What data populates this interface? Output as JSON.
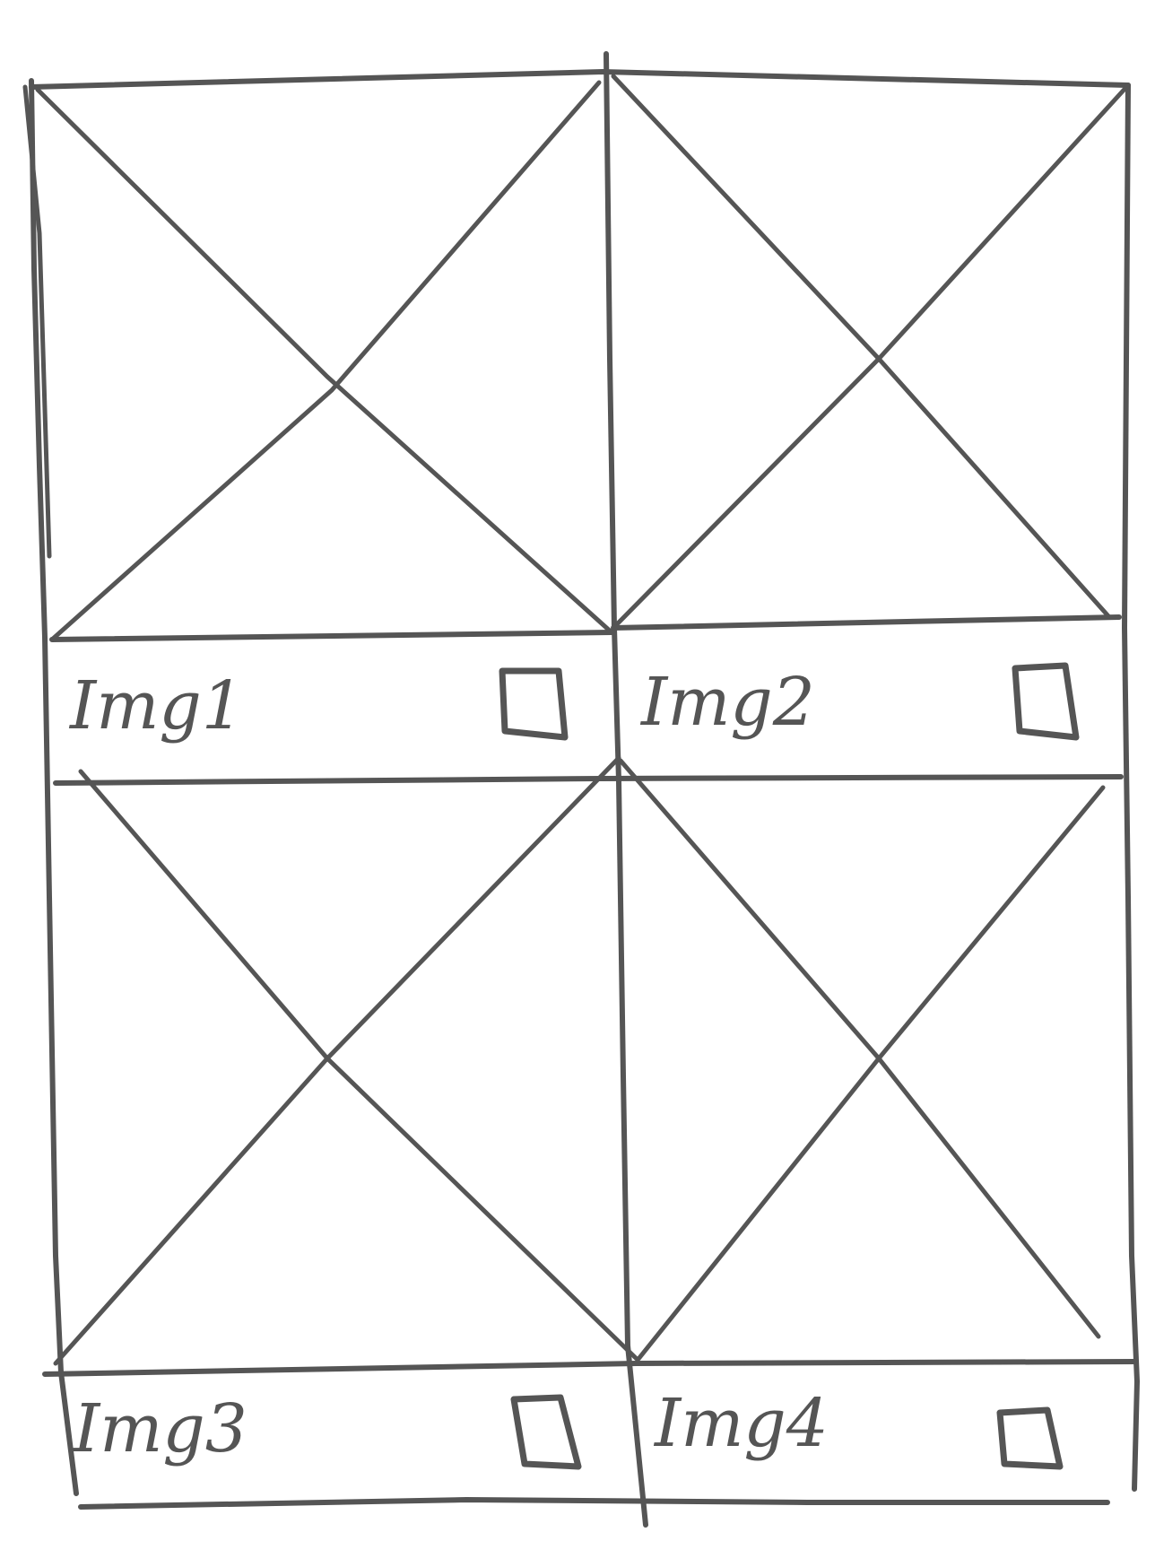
{
  "colors": {
    "ink": "#555555",
    "paper": "#ffffff"
  },
  "gallery": {
    "items": [
      {
        "caption": "Img1",
        "checkbox": "unchecked"
      },
      {
        "caption": "Img2",
        "checkbox": "unchecked"
      },
      {
        "caption": "Img3",
        "checkbox": "unchecked"
      },
      {
        "caption": "Img4",
        "checkbox": "unchecked"
      }
    ]
  }
}
